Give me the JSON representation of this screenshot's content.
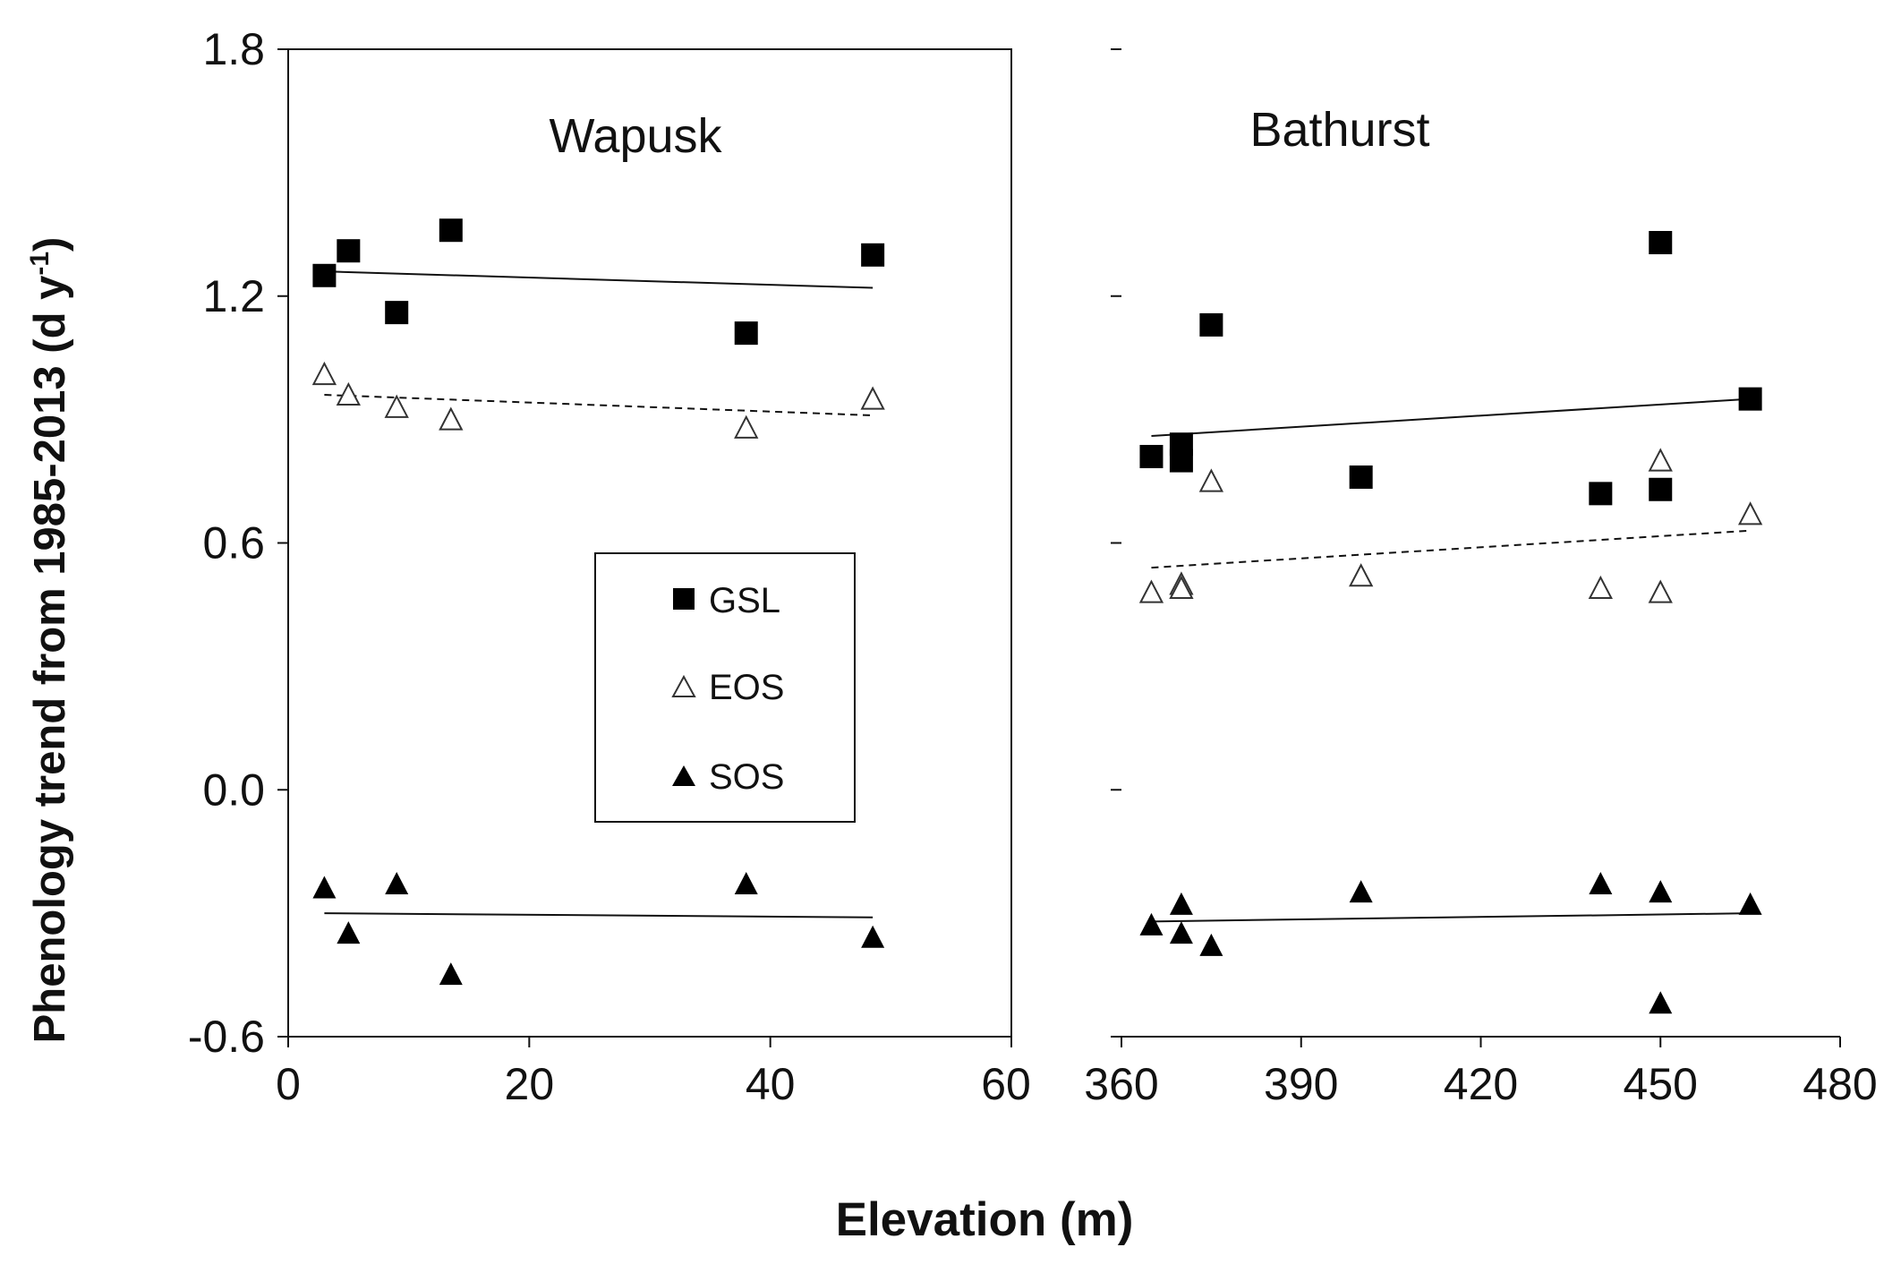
{
  "chart_data": {
    "type": "scatter",
    "ylabel": "Phenology trend from 1985-2013 (d y",
    "ylabel_sup": "-1",
    "ylabel_close": ")",
    "xlabel": "Elevation (m)",
    "ylim": [
      -0.6,
      1.8
    ],
    "yticks": [
      "1.8",
      "1.2",
      "0.6",
      "0.0",
      "-0.6"
    ],
    "legend": {
      "position": "center-right of left panel",
      "entries": [
        "GSL",
        "EOS",
        "SOS"
      ]
    },
    "panels": [
      {
        "title": "Wapusk",
        "xlim": [
          0,
          60
        ],
        "xticks": [
          "0",
          "20",
          "40",
          "60"
        ],
        "series": [
          {
            "name": "GSL",
            "marker": "filled-square",
            "points": [
              [
                3,
                1.25
              ],
              [
                5,
                1.31
              ],
              [
                9,
                1.16
              ],
              [
                13.5,
                1.36
              ],
              [
                38,
                1.11
              ],
              [
                48.5,
                1.3
              ]
            ],
            "trend": [
              [
                3,
                1.26
              ],
              [
                48.5,
                1.22
              ]
            ],
            "trend_style": "solid"
          },
          {
            "name": "EOS",
            "marker": "open-triangle",
            "points": [
              [
                3,
                1.01
              ],
              [
                5,
                0.96
              ],
              [
                9,
                0.93
              ],
              [
                13.5,
                0.9
              ],
              [
                38,
                0.88
              ],
              [
                48.5,
                0.95
              ]
            ],
            "trend": [
              [
                3,
                0.96
              ],
              [
                48.5,
                0.91
              ]
            ],
            "trend_style": "dashed"
          },
          {
            "name": "SOS",
            "marker": "filled-triangle",
            "points": [
              [
                3,
                -0.24
              ],
              [
                5,
                -0.35
              ],
              [
                9,
                -0.23
              ],
              [
                13.5,
                -0.45
              ],
              [
                38,
                -0.23
              ],
              [
                48.5,
                -0.36
              ]
            ],
            "trend": [
              [
                3,
                -0.3
              ],
              [
                48.5,
                -0.31
              ]
            ],
            "trend_style": "solid"
          }
        ]
      },
      {
        "title": "Bathurst",
        "xlim": [
          360,
          480
        ],
        "xticks": [
          "360",
          "390",
          "420",
          "450",
          "480"
        ],
        "series": [
          {
            "name": "GSL",
            "marker": "filled-square",
            "points": [
              [
                365,
                0.81
              ],
              [
                370,
                0.84
              ],
              [
                370,
                0.8
              ],
              [
                375,
                1.13
              ],
              [
                400,
                0.76
              ],
              [
                440,
                0.72
              ],
              [
                450,
                1.33
              ],
              [
                450,
                0.73
              ],
              [
                465,
                0.95
              ]
            ],
            "trend": [
              [
                365,
                0.86
              ],
              [
                465,
                0.95
              ]
            ],
            "trend_style": "solid"
          },
          {
            "name": "EOS",
            "marker": "open-triangle",
            "points": [
              [
                365,
                0.48
              ],
              [
                370,
                0.5
              ],
              [
                370,
                0.49
              ],
              [
                375,
                0.75
              ],
              [
                400,
                0.52
              ],
              [
                440,
                0.49
              ],
              [
                450,
                0.8
              ],
              [
                450,
                0.48
              ],
              [
                465,
                0.67
              ]
            ],
            "trend": [
              [
                365,
                0.54
              ],
              [
                465,
                0.63
              ]
            ],
            "trend_style": "dashed"
          },
          {
            "name": "SOS",
            "marker": "filled-triangle",
            "points": [
              [
                365,
                -0.33
              ],
              [
                370,
                -0.28
              ],
              [
                370,
                -0.35
              ],
              [
                375,
                -0.38
              ],
              [
                400,
                -0.25
              ],
              [
                440,
                -0.23
              ],
              [
                450,
                -0.25
              ],
              [
                450,
                -0.52
              ],
              [
                465,
                -0.28
              ]
            ],
            "trend": [
              [
                365,
                -0.32
              ],
              [
                465,
                -0.3
              ]
            ],
            "trend_style": "solid"
          }
        ]
      }
    ]
  }
}
